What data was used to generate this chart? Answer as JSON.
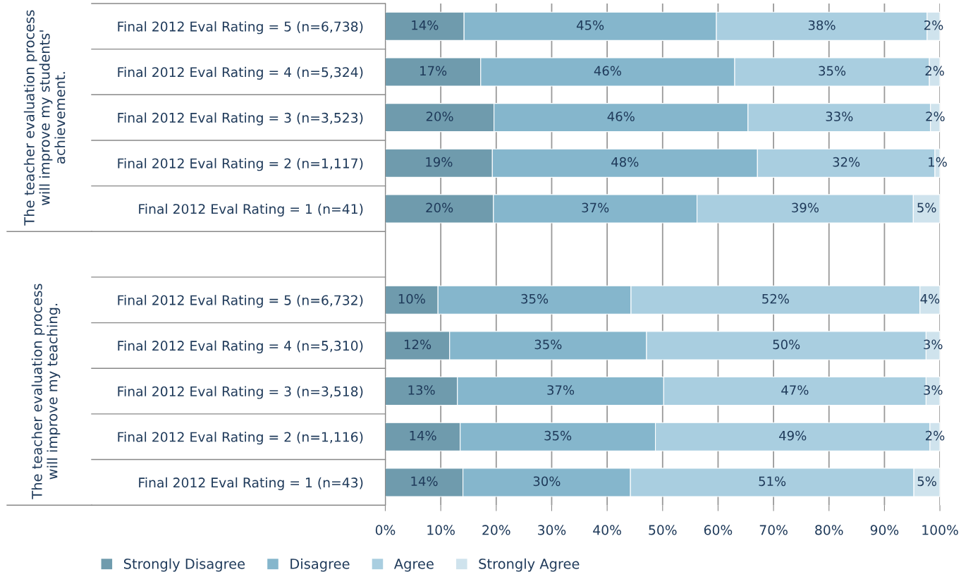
{
  "chart_data": {
    "type": "bar",
    "orientation": "horizontal",
    "stacked": true,
    "categories": [
      "Final 2012 Eval Rating = 5 (n=6,738)",
      "Final 2012 Eval Rating = 4 (n=5,324)",
      "Final 2012 Eval Rating = 3 (n=3,523)",
      "Final 2012 Eval Rating = 2 (n=1,117)",
      "Final 2012 Eval Rating = 1 (n=41)",
      null,
      "Final 2012 Eval Rating = 5 (n=6,732)",
      "Final 2012 Eval Rating = 4 (n=5,310)",
      "Final 2012 Eval Rating = 3 (n=3,518)",
      "Final 2012 Eval Rating = 2 (n=1,116)",
      "Final 2012 Eval Rating = 1 (n=43)"
    ],
    "series": [
      {
        "name": "Strongly Disagree",
        "color": "#6f9bad",
        "values": [
          14.2,
          17.2,
          19.6,
          19.3,
          19.5,
          null,
          9.5,
          11.6,
          13.0,
          13.5,
          14.0
        ],
        "value_labels": [
          "14%",
          "17%",
          "20%",
          "19%",
          "20%",
          null,
          "10%",
          "12%",
          "13%",
          "14%",
          "14%"
        ]
      },
      {
        "name": "Disagree",
        "color": "#85b6cc",
        "values": [
          45.5,
          45.8,
          45.8,
          47.8,
          36.7,
          null,
          34.8,
          35.5,
          37.2,
          35.2,
          30.2
        ],
        "value_labels": [
          "45%",
          "46%",
          "46%",
          "48%",
          "37%",
          null,
          "35%",
          "35%",
          "37%",
          "35%",
          "30%"
        ]
      },
      {
        "name": "Agree",
        "color": "#a9cee0",
        "values": [
          38.0,
          35.1,
          32.9,
          32.0,
          39.0,
          null,
          52.1,
          50.4,
          47.3,
          49.5,
          51.1
        ],
        "value_labels": [
          "38%",
          "35%",
          "33%",
          "32%",
          "39%",
          null,
          "52%",
          "50%",
          "47%",
          "49%",
          "51%"
        ]
      },
      {
        "name": "Strongly Agree",
        "color": "#cfe3ed",
        "values": [
          2.3,
          1.9,
          1.7,
          0.9,
          4.8,
          null,
          3.6,
          2.5,
          2.5,
          1.8,
          4.7
        ],
        "value_labels": [
          "2%",
          "2%",
          "2%",
          "1%",
          "5%",
          null,
          "4%",
          "3%",
          "3%",
          "2%",
          "5%"
        ]
      }
    ],
    "xlim": [
      0,
      100
    ],
    "xticks": [
      {
        "value": 0,
        "label": "0%"
      },
      {
        "value": 10,
        "label": "10%"
      },
      {
        "value": 20,
        "label": "20%"
      },
      {
        "value": 30,
        "label": "30%"
      },
      {
        "value": 40,
        "label": "40%"
      },
      {
        "value": 50,
        "label": "50%"
      },
      {
        "value": 60,
        "label": "60%"
      },
      {
        "value": 70,
        "label": "70%"
      },
      {
        "value": 80,
        "label": "80%"
      },
      {
        "value": 90,
        "label": "90%"
      },
      {
        "value": 100,
        "label": "100%"
      }
    ],
    "grid": "x",
    "legend": "bottom",
    "annotations": [
      "The teacher evaluation process will improve my students' achievement.",
      "The teacher evaluation process will improve my teaching."
    ]
  }
}
